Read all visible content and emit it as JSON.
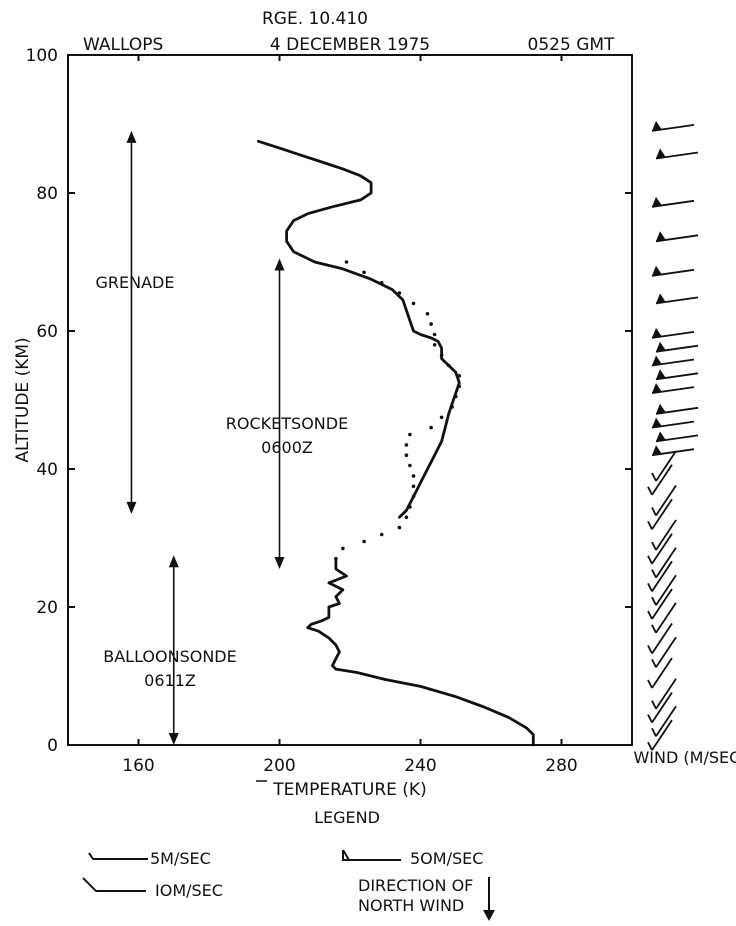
{
  "header": {
    "range_id": "RGE. 10.410",
    "site": "WALLOPS",
    "date": "4 DECEMBER 1975",
    "time": "0525 GMT"
  },
  "chart_data": {
    "type": "line",
    "xlabel": "TEMPERATURE (K)",
    "ylabel": "ALTITUDE (KM)",
    "xlim": [
      140,
      300
    ],
    "ylim": [
      0,
      100
    ],
    "xticks": [
      "160",
      "200",
      "240",
      "280"
    ],
    "yticks": [
      "0",
      "20",
      "40",
      "60",
      "80",
      "100"
    ],
    "series": [
      {
        "name": "GRENADE",
        "style": "solid",
        "points": [
          [
            194,
            87.5
          ],
          [
            200,
            86.5
          ],
          [
            206,
            85.5
          ],
          [
            212,
            84.5
          ],
          [
            218,
            83.5
          ],
          [
            223,
            82.5
          ],
          [
            226,
            81.5
          ],
          [
            226,
            80
          ],
          [
            223,
            79
          ],
          [
            215,
            78
          ],
          [
            208,
            77
          ],
          [
            204,
            76
          ],
          [
            202,
            74.5
          ],
          [
            202,
            73
          ],
          [
            204,
            71.5
          ],
          [
            210,
            70
          ],
          [
            218,
            69
          ],
          [
            226,
            67.5
          ],
          [
            232,
            66
          ],
          [
            235,
            64.5
          ],
          [
            236,
            63
          ],
          [
            237,
            61.5
          ],
          [
            238,
            60
          ],
          [
            240,
            59.5
          ],
          [
            243,
            59
          ],
          [
            245,
            58.5
          ],
          [
            246,
            57.5
          ],
          [
            246,
            56
          ],
          [
            248,
            55
          ],
          [
            250,
            54
          ],
          [
            251,
            52.5
          ],
          [
            250,
            51
          ],
          [
            249,
            49.5
          ],
          [
            248,
            48
          ],
          [
            247,
            46
          ],
          [
            246,
            44
          ],
          [
            244,
            42
          ],
          [
            242,
            40
          ],
          [
            240,
            38
          ],
          [
            238,
            36
          ],
          [
            236,
            34
          ],
          [
            234,
            33
          ]
        ]
      },
      {
        "name": "ROCKETSONDE 0600Z",
        "style": "dotted",
        "points": [
          [
            219,
            70
          ],
          [
            224,
            68.5
          ],
          [
            229,
            67
          ],
          [
            234,
            65.5
          ],
          [
            238,
            64
          ],
          [
            242,
            62.5
          ],
          [
            243,
            61
          ],
          [
            244,
            59.5
          ],
          [
            244,
            58
          ],
          [
            246,
            56.5
          ],
          [
            248,
            55
          ],
          [
            251,
            53.5
          ],
          [
            251,
            52
          ],
          [
            250,
            50.5
          ],
          [
            249,
            49
          ],
          [
            246,
            47.5
          ],
          [
            243,
            46
          ],
          [
            237,
            45
          ],
          [
            236,
            43.5
          ],
          [
            236,
            42
          ],
          [
            237,
            40.5
          ],
          [
            238,
            39
          ],
          [
            238,
            37.5
          ],
          [
            238,
            36
          ],
          [
            237,
            34.5
          ],
          [
            236,
            33
          ],
          [
            234,
            31.5
          ],
          [
            229,
            30.5
          ],
          [
            224,
            29.5
          ],
          [
            218,
            28.5
          ],
          [
            216,
            27
          ]
        ]
      },
      {
        "name": "BALLOONSONDE 0611Z",
        "style": "solid",
        "points": [
          [
            216,
            27
          ],
          [
            216,
            25.5
          ],
          [
            219,
            24.5
          ],
          [
            214,
            23.5
          ],
          [
            218,
            22.5
          ],
          [
            216,
            21.5
          ],
          [
            217,
            20.5
          ],
          [
            214,
            20
          ],
          [
            214,
            18.5
          ],
          [
            212,
            18
          ],
          [
            209,
            17.5
          ],
          [
            208,
            17
          ],
          [
            211,
            16.5
          ],
          [
            214,
            15.5
          ],
          [
            216,
            14.5
          ],
          [
            217,
            13.5
          ],
          [
            216,
            12.5
          ],
          [
            215,
            11.5
          ],
          [
            216,
            11
          ],
          [
            222,
            10.5
          ],
          [
            230,
            9.5
          ],
          [
            240,
            8.5
          ],
          [
            250,
            7
          ],
          [
            258,
            5.5
          ],
          [
            265,
            4
          ],
          [
            270,
            2.5
          ],
          [
            272,
            1.5
          ],
          [
            272,
            0
          ]
        ]
      }
    ],
    "annotations": [
      {
        "label": "GRENADE",
        "from": 89,
        "to": 33.5,
        "x": 158
      },
      {
        "label": "ROCKETSONDE 0600Z",
        "from": 70.5,
        "to": 25.5,
        "x": 200
      },
      {
        "label": "BALLOONSONDE 0611Z",
        "from": 27.5,
        "to": 0,
        "x": 170
      }
    ],
    "wind_label": "WIND (M/SEC)",
    "wind_altitudes": [
      89,
      85,
      78,
      73,
      68,
      64,
      59,
      57,
      55,
      53,
      51,
      48,
      46,
      44,
      42,
      40,
      38,
      35,
      33,
      30,
      28,
      26,
      24,
      22,
      20,
      18,
      15,
      13,
      10,
      7,
      5,
      3,
      1
    ]
  },
  "legend": {
    "title": "LEGEND",
    "five": "5M/SEC",
    "ten": "IOM/SEC",
    "fifty": "5OM/SEC",
    "direction_line1": "DIRECTION OF",
    "direction_line2": "NORTH WIND"
  }
}
